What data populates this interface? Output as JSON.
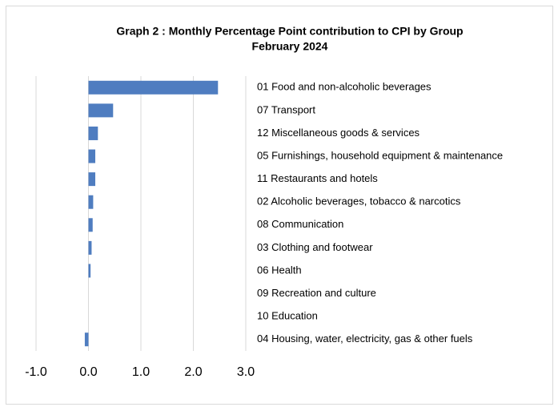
{
  "chart_data": {
    "type": "bar",
    "orientation": "horizontal",
    "title": "Graph 2 : Monthly Percentage Point contribution to CPI by Group",
    "subtitle": "February 2024",
    "categories": [
      "01 Food and non-alcoholic beverages",
      "07 Transport",
      "12 Miscellaneous goods & services",
      "05 Furnishings, household equipment & maintenance",
      "11 Restaurants and hotels",
      "02 Alcoholic beverages, tobacco & narcotics",
      "08 Communication",
      "03 Clothing and footwear",
      "06 Health",
      "09 Recreation and culture",
      "10 Education",
      "04 Housing, water, electricity, gas & other fuels"
    ],
    "values": [
      2.47,
      0.47,
      0.18,
      0.13,
      0.13,
      0.09,
      0.08,
      0.06,
      0.04,
      0,
      0,
      -0.07
    ],
    "color": "#4f7dc0",
    "xlim": [
      -1,
      3
    ],
    "xticks": [
      {
        "value": -1,
        "label": "-1.0"
      },
      {
        "value": 0,
        "label": "0.0"
      },
      {
        "value": 1,
        "label": "1.0"
      },
      {
        "value": 2,
        "label": "2.0"
      },
      {
        "value": 3,
        "label": "3.0"
      }
    ],
    "grid": true
  }
}
